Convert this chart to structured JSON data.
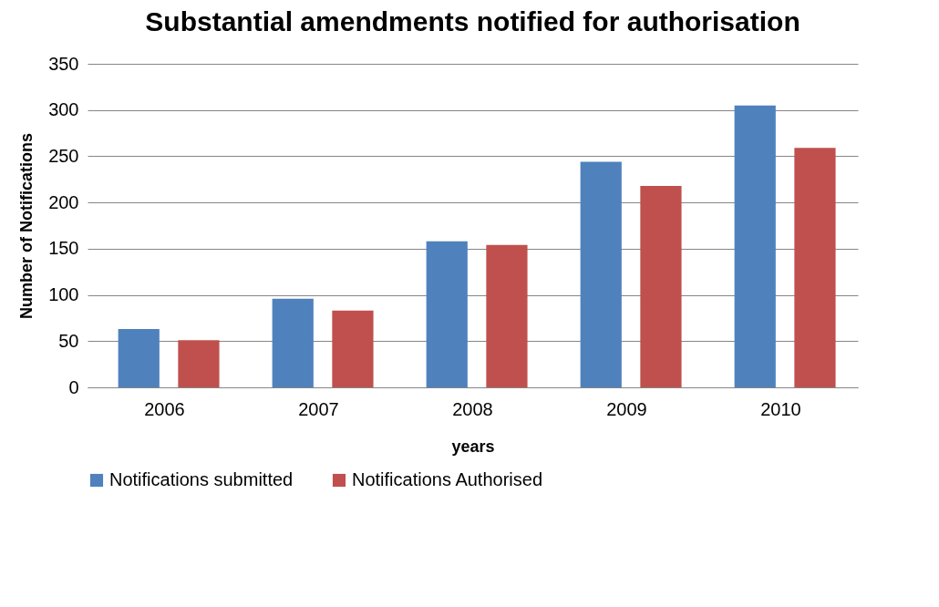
{
  "chart_data": {
    "type": "bar",
    "title": "Substantial amendments notified for authorisation",
    "xlabel": "years",
    "ylabel": "Number of Notifications",
    "categories": [
      "2006",
      "2007",
      "2008",
      "2009",
      "2010"
    ],
    "series": [
      {
        "name": "Notifications submitted",
        "color": "#4f81bd",
        "values": [
          63,
          96,
          158,
          244,
          305
        ]
      },
      {
        "name": "Notifications Authorised",
        "color": "#c0504d",
        "values": [
          51,
          83,
          154,
          218,
          259
        ]
      }
    ],
    "ylim": [
      0,
      350
    ],
    "yticks": [
      0,
      50,
      100,
      150,
      200,
      250,
      300,
      350
    ],
    "grid": "y",
    "legend": "bottom"
  }
}
